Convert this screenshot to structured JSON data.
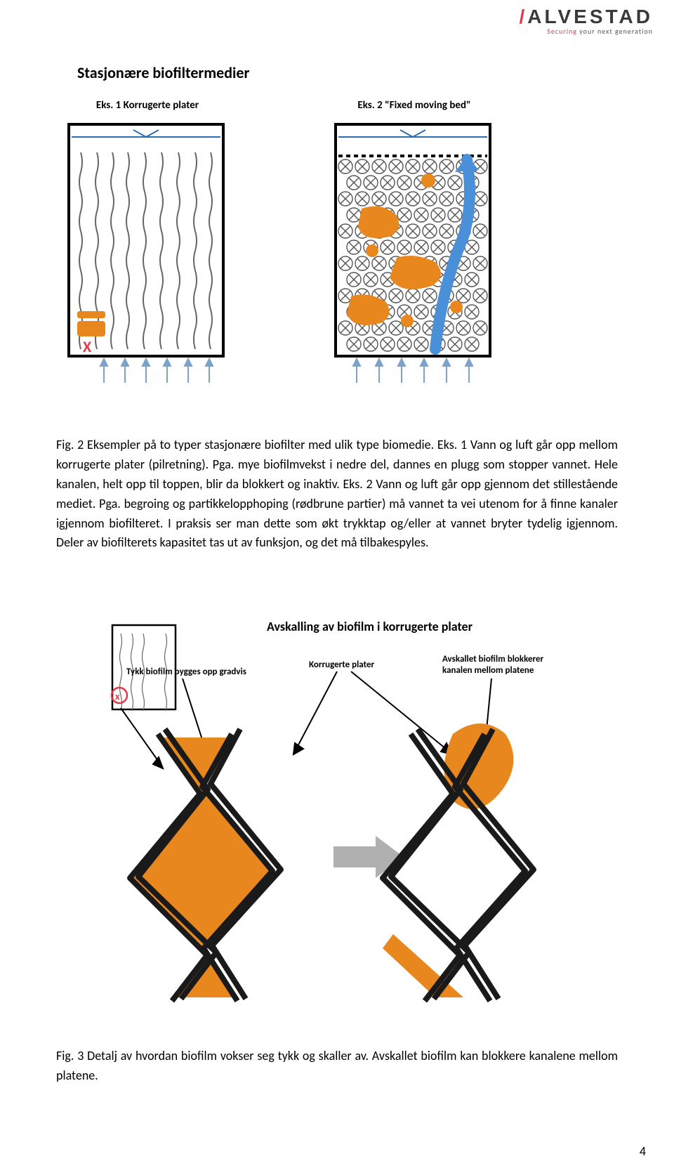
{
  "logo": {
    "name": "ALVESTAD",
    "tagline_prefix": "Securing",
    "tagline_rest": " your next generation",
    "text_color": "#3a3a3a",
    "accent_color": "#e63946"
  },
  "figure1": {
    "title": "Stasjonære biofiltermedier",
    "col1_label": "Eks. 1 Korrugerte plater",
    "col2_label": "Eks. 2 \"Fixed moving bed\"",
    "colors": {
      "container": "#000000",
      "arrows": "#7aa3cc",
      "wavy": "#666666",
      "biofilm": "#e8871e",
      "flow_arrow": "#4a90d9",
      "bead_stroke": "#555555",
      "x_mark": "#e63946",
      "water_line": "#2b6fb3"
    }
  },
  "paragraph": "Fig. 2 Eksempler på to typer stasjonære biofilter med ulik type biomedie. Eks. 1 Vann og luft går opp mellom korrugerte plater (pilretning). Pga. mye biofilmvekst i nedre del, dannes en plugg som stopper vannet. Hele kanalen, helt opp til toppen, blir da blokkert og inaktiv. Eks. 2 Vann og luft går opp gjennom det stillestående mediet. Pga. begroing og partikkelopphoping (rødbrune partier) må vannet ta vei utenom for å finne kanaler igjennom biofilteret. I praksis ser man dette som økt trykktap og/eller at vannet bryter tydelig igjennom. Deler av biofilterets kapasitet tas ut av funksjon, og det må tilbakespyles.",
  "figure2": {
    "title": "Avskalling av biofilm i korrugerte plater",
    "label_left": "Tykk biofilm bygges opp gradvis",
    "label_mid": "Korrugerte plater",
    "label_right": "Avskallet biofilm blokkerer kanalen mellom platene",
    "colors": {
      "plate": "#1a1a1a",
      "biofilm": "#e8871e",
      "arrow_gray": "#b0b0b0",
      "anno_arrow": "#000000"
    }
  },
  "caption2": "Fig. 3 Detalj av hvordan biofilm vokser seg tykk og skaller av. Avskallet biofilm kan blokkere kanalene mellom platene.",
  "page_number": "4"
}
